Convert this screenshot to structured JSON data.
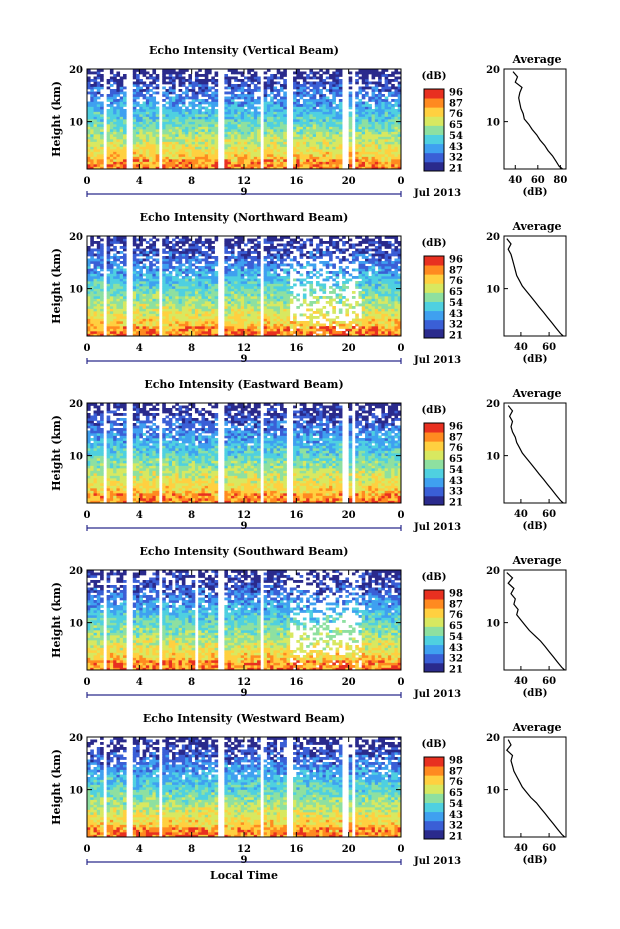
{
  "xlabel_bottom": "Local Time",
  "date_label": "Jul 2013",
  "day_label": "9",
  "colorbar_unit": "(dB)",
  "colorbar_ticks": [
    "96",
    "87",
    "76",
    "65",
    "54",
    "43",
    "32",
    "21"
  ],
  "colorbar_ticks_by_panel": [
    [
      "96",
      "87",
      "76",
      "65",
      "54",
      "43",
      "32",
      "21"
    ],
    [
      "96",
      "87",
      "76",
      "65",
      "54",
      "43",
      "32",
      "21"
    ],
    [
      "96",
      "87",
      "76",
      "65",
      "54",
      "43",
      "33",
      "21"
    ],
    [
      "98",
      "87",
      "76",
      "65",
      "54",
      "43",
      "32",
      "21"
    ],
    [
      "98",
      "87",
      "76",
      "65",
      "54",
      "43",
      "32",
      "21"
    ]
  ],
  "x_ticks": [
    "0",
    "4",
    "8",
    "12",
    "16",
    "20",
    "0"
  ],
  "y_ticks": [
    "20",
    "10"
  ],
  "ylabel": "Height (km)",
  "profile_title": "Average",
  "profile_xlabel": "(dB)",
  "colormap": [
    "#2a2a8c",
    "#3a5fd6",
    "#3fa0f0",
    "#4fd0e0",
    "#8ee0a0",
    "#d8e860",
    "#ffd040",
    "#ff8a20",
    "#e83020"
  ],
  "chart_data": [
    {
      "type": "heatmap",
      "title": "Echo Intensity (Vertical Beam)",
      "xlabel": "Local Time",
      "ylabel": "Height (km)",
      "x_range": [
        0,
        24
      ],
      "y_range": [
        1,
        20
      ],
      "z_range": [
        21,
        96
      ],
      "z_unit": "dB",
      "data_gaps_hours": [
        [
          1.2,
          1.6
        ],
        [
          3.1,
          3.5
        ],
        [
          5.4,
          5.8
        ],
        [
          10.0,
          10.4
        ],
        [
          13.2,
          13.6
        ],
        [
          15.3,
          15.7
        ],
        [
          19.6,
          20.0
        ],
        [
          20.3,
          20.5
        ]
      ],
      "profile": {
        "title": "Average",
        "xlabel": "(dB)",
        "x_ticks": [
          "40",
          "60",
          "80"
        ],
        "x_range": [
          30,
          85
        ],
        "points": [
          [
            38,
            19.5
          ],
          [
            42,
            18.5
          ],
          [
            40,
            17.5
          ],
          [
            46,
            16.5
          ],
          [
            44,
            15.5
          ],
          [
            43,
            14.5
          ],
          [
            44,
            13.5
          ],
          [
            45,
            12.5
          ],
          [
            47,
            11.5
          ],
          [
            48,
            10.5
          ],
          [
            52,
            9.5
          ],
          [
            55,
            8.5
          ],
          [
            59,
            7.5
          ],
          [
            62,
            6.5
          ],
          [
            66,
            5.5
          ],
          [
            69,
            4.5
          ],
          [
            73,
            3.5
          ],
          [
            76,
            2.5
          ],
          [
            79,
            1.5
          ],
          [
            82,
            1.0
          ]
        ]
      }
    },
    {
      "type": "heatmap",
      "title": "Echo Intensity (Northward Beam)",
      "xlabel": "Local Time",
      "ylabel": "Height (km)",
      "x_range": [
        0,
        24
      ],
      "y_range": [
        1,
        20
      ],
      "z_range": [
        21,
        96
      ],
      "z_unit": "dB",
      "data_gaps_hours": [
        [
          1.2,
          1.6
        ],
        [
          3.1,
          3.5
        ],
        [
          5.4,
          5.8
        ],
        [
          10.0,
          10.4
        ],
        [
          13.2,
          13.6
        ]
      ],
      "profile": {
        "title": "Average",
        "xlabel": "(dB)",
        "x_ticks": [
          "40",
          "60"
        ],
        "x_range": [
          28,
          72
        ],
        "points": [
          [
            30,
            19.5
          ],
          [
            33,
            18.5
          ],
          [
            31,
            17.5
          ],
          [
            33,
            16.5
          ],
          [
            34,
            15.5
          ],
          [
            35,
            14.5
          ],
          [
            36,
            13.5
          ],
          [
            37,
            12.5
          ],
          [
            39,
            11.5
          ],
          [
            41,
            10.5
          ],
          [
            44,
            9.5
          ],
          [
            47,
            8.5
          ],
          [
            50,
            7.5
          ],
          [
            53,
            6.5
          ],
          [
            56,
            5.5
          ],
          [
            59,
            4.5
          ],
          [
            62,
            3.5
          ],
          [
            65,
            2.5
          ],
          [
            68,
            1.5
          ],
          [
            70,
            1.0
          ]
        ]
      }
    },
    {
      "type": "heatmap",
      "title": "Echo Intensity (Eastward Beam)",
      "xlabel": "Local Time",
      "ylabel": "Height (km)",
      "x_range": [
        0,
        24
      ],
      "y_range": [
        1,
        20
      ],
      "z_range": [
        21,
        96
      ],
      "z_unit": "dB",
      "data_gaps_hours": [
        [
          1.2,
          1.6
        ],
        [
          3.1,
          3.5
        ],
        [
          5.4,
          5.8
        ],
        [
          10.0,
          10.4
        ],
        [
          13.2,
          13.6
        ],
        [
          15.3,
          15.7
        ],
        [
          19.6,
          20.0
        ],
        [
          20.3,
          20.5
        ]
      ],
      "profile": {
        "title": "Average",
        "xlabel": "(dB)",
        "x_ticks": [
          "40",
          "60"
        ],
        "x_range": [
          28,
          72
        ],
        "points": [
          [
            31,
            19.5
          ],
          [
            34,
            18.5
          ],
          [
            32,
            17.5
          ],
          [
            34,
            16.5
          ],
          [
            33,
            15.5
          ],
          [
            34,
            14.5
          ],
          [
            36,
            13.5
          ],
          [
            37,
            12.5
          ],
          [
            39,
            11.5
          ],
          [
            41,
            10.5
          ],
          [
            44,
            9.5
          ],
          [
            47,
            8.5
          ],
          [
            50,
            7.5
          ],
          [
            53,
            6.5
          ],
          [
            56,
            5.5
          ],
          [
            59,
            4.5
          ],
          [
            62,
            3.5
          ],
          [
            65,
            2.5
          ],
          [
            68,
            1.5
          ],
          [
            70,
            1.0
          ]
        ]
      }
    },
    {
      "type": "heatmap",
      "title": "Echo Intensity (Southward Beam)",
      "xlabel": "Local Time",
      "ylabel": "Height (km)",
      "x_range": [
        0,
        24
      ],
      "y_range": [
        1,
        20
      ],
      "z_range": [
        21,
        98
      ],
      "z_unit": "dB",
      "data_gaps_hours": [
        [
          1.2,
          1.6
        ],
        [
          3.1,
          3.5
        ],
        [
          5.4,
          5.8
        ],
        [
          8.3,
          8.6
        ],
        [
          10.0,
          10.4
        ],
        [
          13.2,
          13.6
        ]
      ],
      "profile": {
        "title": "Average",
        "xlabel": "(dB)",
        "x_ticks": [
          "40",
          "60"
        ],
        "x_range": [
          28,
          72
        ],
        "points": [
          [
            30,
            19.5
          ],
          [
            34,
            18.5
          ],
          [
            31,
            17.5
          ],
          [
            35,
            16.5
          ],
          [
            33,
            15.5
          ],
          [
            36,
            14.5
          ],
          [
            35,
            13.5
          ],
          [
            38,
            12.5
          ],
          [
            37,
            11.5
          ],
          [
            40,
            10.5
          ],
          [
            43,
            9.5
          ],
          [
            46,
            8.5
          ],
          [
            50,
            7.5
          ],
          [
            54,
            6.5
          ],
          [
            57,
            5.5
          ],
          [
            60,
            4.5
          ],
          [
            63,
            3.5
          ],
          [
            66,
            2.5
          ],
          [
            69,
            1.5
          ],
          [
            71,
            1.0
          ]
        ]
      }
    },
    {
      "type": "heatmap",
      "title": "Echo Intensity (Westward Beam)",
      "xlabel": "Local Time",
      "ylabel": "Height (km)",
      "x_range": [
        0,
        24
      ],
      "y_range": [
        1,
        20
      ],
      "z_range": [
        21,
        98
      ],
      "z_unit": "dB",
      "data_gaps_hours": [
        [
          1.2,
          1.6
        ],
        [
          3.1,
          3.5
        ],
        [
          5.4,
          5.8
        ],
        [
          10.0,
          10.4
        ],
        [
          13.2,
          13.6
        ],
        [
          15.3,
          15.7
        ],
        [
          19.6,
          20.0
        ],
        [
          20.3,
          20.5
        ]
      ],
      "profile": {
        "title": "Average",
        "xlabel": "(dB)",
        "x_ticks": [
          "40",
          "60"
        ],
        "x_range": [
          28,
          72
        ],
        "points": [
          [
            31,
            19.5
          ],
          [
            33,
            18.5
          ],
          [
            30,
            17.5
          ],
          [
            34,
            16.5
          ],
          [
            33,
            15.5
          ],
          [
            34,
            14.5
          ],
          [
            35,
            13.5
          ],
          [
            37,
            12.5
          ],
          [
            39,
            11.5
          ],
          [
            41,
            10.5
          ],
          [
            44,
            9.5
          ],
          [
            47,
            8.5
          ],
          [
            51,
            7.5
          ],
          [
            54,
            6.5
          ],
          [
            57,
            5.5
          ],
          [
            60,
            4.5
          ],
          [
            63,
            3.5
          ],
          [
            66,
            2.5
          ],
          [
            69,
            1.5
          ],
          [
            71,
            1.0
          ]
        ]
      }
    }
  ]
}
